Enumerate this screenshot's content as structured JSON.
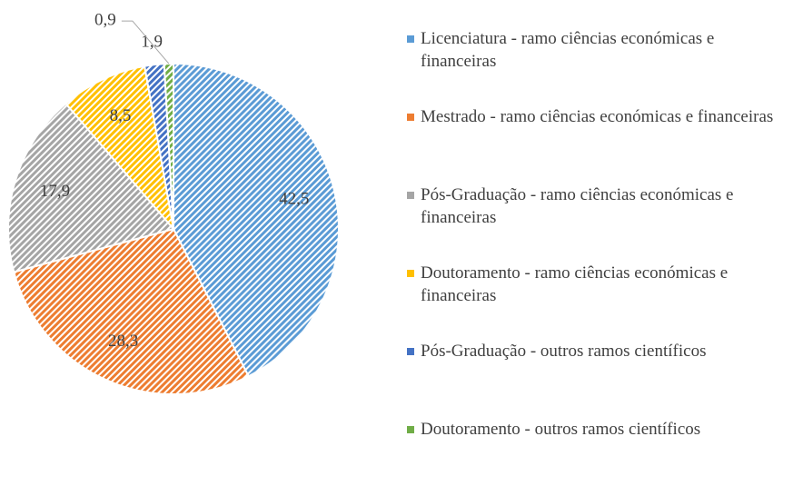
{
  "chart_data": {
    "type": "pie",
    "categories": [
      "Licenciatura - ramo ciências económicas e financeiras",
      "Mestrado - ramo ciências económicas e financeiras",
      "Pós-Graduação - ramo ciências económicas e financeiras",
      "Doutoramento - ramo ciências económicas e financeiras",
      "Pós-Graduação - outros ramos científicos",
      "Doutoramento - outros ramos científicos"
    ],
    "values": [
      42.5,
      28.3,
      17.9,
      8.5,
      1.9,
      0.9
    ],
    "value_labels": [
      "42,5",
      "28,3",
      "17,9",
      "8,5",
      "1,9",
      "0,9"
    ],
    "colors": [
      "#5b9bd5",
      "#ed7d31",
      "#a5a5a5",
      "#ffc000",
      "#4472c4",
      "#70ad47"
    ],
    "legend": "right"
  }
}
